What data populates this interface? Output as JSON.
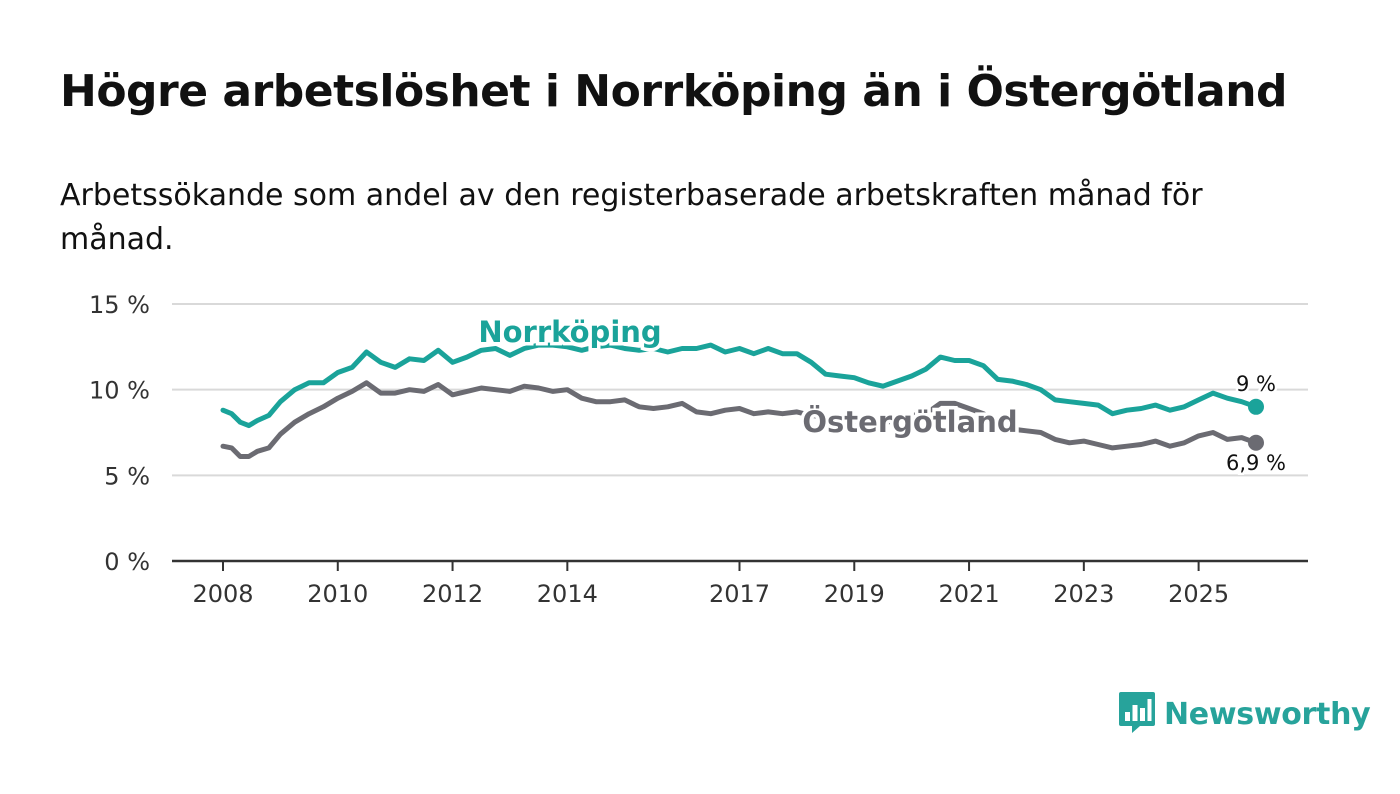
{
  "title": "Högre arbetslöshet i Norrköping än i Östergötland",
  "subtitle": "Arbetssökande som andel av den registerbaserade arbetskraften månad för månad.",
  "brand": {
    "name": "Newsworthy",
    "icon": "newsworthy-logo-icon",
    "color": "#27a39b"
  },
  "chart_data": {
    "type": "line",
    "title": "Högre arbetslöshet i Norrköping än i Östergötland",
    "xlabel": "",
    "ylabel": "",
    "xlim": [
      2008,
      2026
    ],
    "ylim": [
      0,
      15
    ],
    "y_ticks": [
      0,
      5,
      10,
      15
    ],
    "y_tick_labels": [
      "0 %",
      "5 %",
      "10 %",
      "15 %"
    ],
    "x_ticks": [
      2008,
      2010,
      2012,
      2014,
      2017,
      2019,
      2021,
      2023,
      2025
    ],
    "x_tick_labels": [
      "2008",
      "2010",
      "2012",
      "2014",
      "2017",
      "2019",
      "2021",
      "2023",
      "2025"
    ],
    "grid": true,
    "series": [
      {
        "name": "Norrköping",
        "color": "#1aa39a",
        "end_label": "9 %",
        "points": [
          [
            2008.0,
            8.8
          ],
          [
            2008.15,
            8.6
          ],
          [
            2008.3,
            8.1
          ],
          [
            2008.45,
            7.9
          ],
          [
            2008.6,
            8.2
          ],
          [
            2008.8,
            8.5
          ],
          [
            2009.0,
            9.3
          ],
          [
            2009.25,
            10.0
          ],
          [
            2009.5,
            10.4
          ],
          [
            2009.75,
            10.4
          ],
          [
            2010.0,
            11.0
          ],
          [
            2010.25,
            11.3
          ],
          [
            2010.5,
            12.2
          ],
          [
            2010.75,
            11.6
          ],
          [
            2011.0,
            11.3
          ],
          [
            2011.25,
            11.8
          ],
          [
            2011.5,
            11.7
          ],
          [
            2011.75,
            12.3
          ],
          [
            2012.0,
            11.6
          ],
          [
            2012.25,
            11.9
          ],
          [
            2012.5,
            12.3
          ],
          [
            2012.75,
            12.4
          ],
          [
            2013.0,
            12.0
          ],
          [
            2013.25,
            12.4
          ],
          [
            2013.5,
            12.6
          ],
          [
            2013.75,
            12.6
          ],
          [
            2014.0,
            12.5
          ],
          [
            2014.25,
            12.3
          ],
          [
            2014.5,
            12.5
          ],
          [
            2014.75,
            12.6
          ],
          [
            2015.0,
            12.4
          ],
          [
            2015.25,
            12.3
          ],
          [
            2015.5,
            12.4
          ],
          [
            2015.75,
            12.2
          ],
          [
            2016.0,
            12.4
          ],
          [
            2016.25,
            12.4
          ],
          [
            2016.5,
            12.6
          ],
          [
            2016.75,
            12.2
          ],
          [
            2017.0,
            12.4
          ],
          [
            2017.25,
            12.1
          ],
          [
            2017.5,
            12.4
          ],
          [
            2017.75,
            12.1
          ],
          [
            2018.0,
            12.1
          ],
          [
            2018.25,
            11.6
          ],
          [
            2018.5,
            10.9
          ],
          [
            2018.75,
            10.8
          ],
          [
            2019.0,
            10.7
          ],
          [
            2019.25,
            10.4
          ],
          [
            2019.5,
            10.2
          ],
          [
            2019.75,
            10.5
          ],
          [
            2020.0,
            10.8
          ],
          [
            2020.25,
            11.2
          ],
          [
            2020.5,
            11.9
          ],
          [
            2020.75,
            11.7
          ],
          [
            2021.0,
            11.7
          ],
          [
            2021.25,
            11.4
          ],
          [
            2021.5,
            10.6
          ],
          [
            2021.75,
            10.5
          ],
          [
            2022.0,
            10.3
          ],
          [
            2022.25,
            10.0
          ],
          [
            2022.5,
            9.4
          ],
          [
            2022.75,
            9.3
          ],
          [
            2023.0,
            9.2
          ],
          [
            2023.25,
            9.1
          ],
          [
            2023.5,
            8.6
          ],
          [
            2023.75,
            8.8
          ],
          [
            2024.0,
            8.9
          ],
          [
            2024.25,
            9.1
          ],
          [
            2024.5,
            8.8
          ],
          [
            2024.75,
            9.0
          ],
          [
            2025.0,
            9.4
          ],
          [
            2025.25,
            9.8
          ],
          [
            2025.5,
            9.5
          ],
          [
            2025.75,
            9.3
          ],
          [
            2026.0,
            9.0
          ]
        ]
      },
      {
        "name": "Östergötland",
        "color": "#6b6b72",
        "end_label": "6,9 %",
        "points": [
          [
            2008.0,
            6.7
          ],
          [
            2008.15,
            6.6
          ],
          [
            2008.3,
            6.1
          ],
          [
            2008.45,
            6.1
          ],
          [
            2008.6,
            6.4
          ],
          [
            2008.8,
            6.6
          ],
          [
            2009.0,
            7.4
          ],
          [
            2009.25,
            8.1
          ],
          [
            2009.5,
            8.6
          ],
          [
            2009.75,
            9.0
          ],
          [
            2010.0,
            9.5
          ],
          [
            2010.25,
            9.9
          ],
          [
            2010.5,
            10.4
          ],
          [
            2010.75,
            9.8
          ],
          [
            2011.0,
            9.8
          ],
          [
            2011.25,
            10.0
          ],
          [
            2011.5,
            9.9
          ],
          [
            2011.75,
            10.3
          ],
          [
            2012.0,
            9.7
          ],
          [
            2012.25,
            9.9
          ],
          [
            2012.5,
            10.1
          ],
          [
            2012.75,
            10.0
          ],
          [
            2013.0,
            9.9
          ],
          [
            2013.25,
            10.2
          ],
          [
            2013.5,
            10.1
          ],
          [
            2013.75,
            9.9
          ],
          [
            2014.0,
            10.0
          ],
          [
            2014.25,
            9.5
          ],
          [
            2014.5,
            9.3
          ],
          [
            2014.75,
            9.3
          ],
          [
            2015.0,
            9.4
          ],
          [
            2015.25,
            9.0
          ],
          [
            2015.5,
            8.9
          ],
          [
            2015.75,
            9.0
          ],
          [
            2016.0,
            9.2
          ],
          [
            2016.25,
            8.7
          ],
          [
            2016.5,
            8.6
          ],
          [
            2016.75,
            8.8
          ],
          [
            2017.0,
            8.9
          ],
          [
            2017.25,
            8.6
          ],
          [
            2017.5,
            8.7
          ],
          [
            2017.75,
            8.6
          ],
          [
            2018.0,
            8.7
          ],
          [
            2018.25,
            8.5
          ],
          [
            2018.5,
            8.4
          ],
          [
            2018.75,
            8.3
          ],
          [
            2019.0,
            8.2
          ],
          [
            2019.25,
            8.1
          ],
          [
            2019.5,
            8.0
          ],
          [
            2019.75,
            8.3
          ],
          [
            2020.0,
            8.5
          ],
          [
            2020.25,
            8.6
          ],
          [
            2020.5,
            9.2
          ],
          [
            2020.75,
            9.2
          ],
          [
            2021.0,
            8.9
          ],
          [
            2021.25,
            8.6
          ],
          [
            2021.5,
            8.0
          ],
          [
            2021.75,
            7.7
          ],
          [
            2022.0,
            7.6
          ],
          [
            2022.25,
            7.5
          ],
          [
            2022.5,
            7.1
          ],
          [
            2022.75,
            6.9
          ],
          [
            2023.0,
            7.0
          ],
          [
            2023.25,
            6.8
          ],
          [
            2023.5,
            6.6
          ],
          [
            2023.75,
            6.7
          ],
          [
            2024.0,
            6.8
          ],
          [
            2024.25,
            7.0
          ],
          [
            2024.5,
            6.7
          ],
          [
            2024.75,
            6.9
          ],
          [
            2025.0,
            7.3
          ],
          [
            2025.25,
            7.5
          ],
          [
            2025.5,
            7.1
          ],
          [
            2025.75,
            7.2
          ],
          [
            2026.0,
            6.9
          ]
        ]
      }
    ]
  }
}
